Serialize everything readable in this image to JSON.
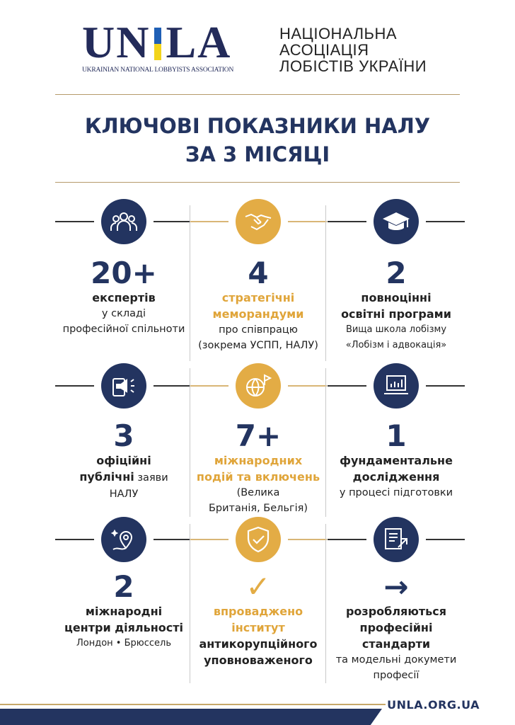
{
  "logo": {
    "text_left": "UN",
    "text_right": "LA",
    "tagline": "UKRAINIAN NATIONAL LOBBYISTS ASSOCIATION"
  },
  "org_name": [
    "НАЦІОНАЛЬНА",
    "АСОЦІАЦІЯ",
    "ЛОБІСТІВ УКРАЇНИ"
  ],
  "title": [
    "КЛЮЧОВІ ПОКАЗНИКИ НАЛУ",
    "ЗА 3 МІСЯЦІ"
  ],
  "colors": {
    "navy": "#233460",
    "gold": "#e3ac45"
  },
  "stats": [
    {
      "icon": "people-icon",
      "value": "20+",
      "lines": [
        {
          "t": "експертів",
          "s": "b"
        },
        {
          "t": "у складі",
          "s": "r"
        },
        {
          "t": "професійної спільноти",
          "s": "r"
        }
      ]
    },
    {
      "icon": "handshake-icon",
      "value": "4",
      "lines": [
        {
          "t": "стратегічні",
          "s": "g"
        },
        {
          "t": "меморандуми",
          "s": "g"
        },
        {
          "t": "про співпрацю",
          "s": "r"
        },
        {
          "t": "(зокрема УСПП, НАЛУ)",
          "s": "r"
        }
      ]
    },
    {
      "icon": "graduation-cap-icon",
      "value": "2",
      "lines": [
        {
          "t": "повноцінні",
          "s": "b"
        },
        {
          "t": "освітні програми",
          "s": "b"
        },
        {
          "t": "Вища школа лобізму",
          "s": "s"
        },
        {
          "t": "«Лобізм і адвокація»",
          "s": "s"
        }
      ]
    },
    {
      "icon": "megaphone-icon",
      "value": "3",
      "lines": [
        {
          "t": "офіційні",
          "s": "b"
        },
        {
          "t": "публічні",
          "s": "b",
          "tail": " заяви"
        },
        {
          "t": "НАЛУ",
          "s": "r"
        }
      ]
    },
    {
      "icon": "globe-flag-icon",
      "value": "7+",
      "lines": [
        {
          "t": "міжнародних",
          "s": "g"
        },
        {
          "t": "подій та включень",
          "s": "g"
        },
        {
          "t": "(Велика",
          "s": "r"
        },
        {
          "t": "Британія, Бельгія)",
          "s": "r"
        }
      ]
    },
    {
      "icon": "chart-laptop-icon",
      "value": "1",
      "lines": [
        {
          "t": "фундаментальне",
          "s": "b"
        },
        {
          "t": "дослідження",
          "s": "b"
        },
        {
          "t": "у процесі підготовки",
          "s": "r"
        }
      ]
    },
    {
      "icon": "map-pin-icon",
      "value": "2",
      "lines": [
        {
          "t": "міжнародні",
          "s": "b"
        },
        {
          "t": "центри діяльності",
          "s": "b"
        },
        {
          "t": "Лондон • Брюссель",
          "s": "s"
        }
      ]
    },
    {
      "icon": "shield-check-icon",
      "value": "✓",
      "lines": [
        {
          "t": "впроваджено",
          "s": "g"
        },
        {
          "t": "інститут",
          "s": "g"
        },
        {
          "t": "антикорупційного",
          "s": "b"
        },
        {
          "t": "уповноваженого",
          "s": "b"
        }
      ]
    },
    {
      "icon": "document-arrow-icon",
      "value": "→",
      "lines": [
        {
          "t": "розробляються",
          "s": "b"
        },
        {
          "t": "професійні",
          "s": "b"
        },
        {
          "t": "стандарти",
          "s": "b"
        },
        {
          "t": "та модельні докумети",
          "s": "r"
        },
        {
          "t": "професії",
          "s": "r"
        }
      ]
    }
  ],
  "footer": {
    "url": "UNLA.ORG.UA"
  }
}
